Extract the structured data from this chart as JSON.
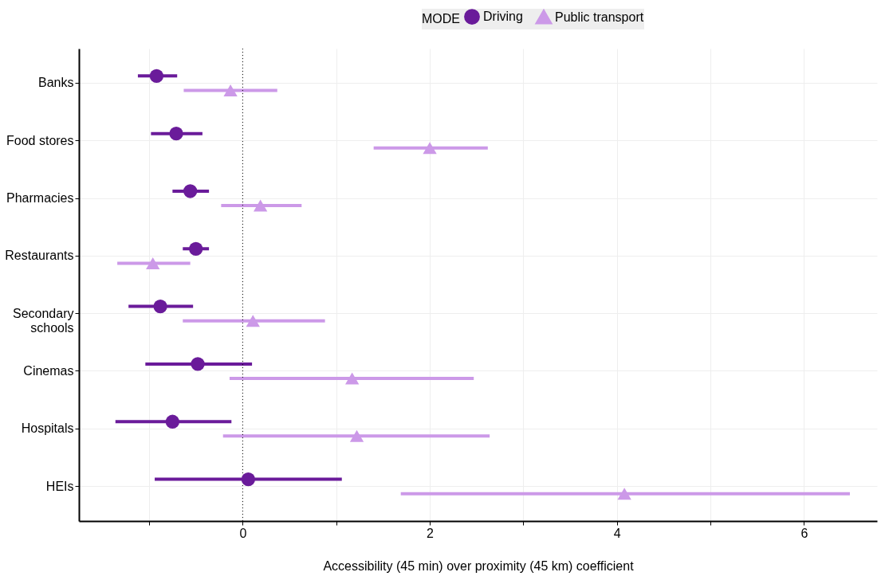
{
  "chart_data": {
    "type": "scatter",
    "xlabel": "Accessibility (45 min) over proximity (45 km) coefficient",
    "legend_title": "MODE",
    "categories": [
      "Banks",
      "Food stores",
      "Pharmacies",
      "Restaurants",
      "Secondary schools",
      "Cinemas",
      "Hospitals",
      "HEIs"
    ],
    "series": [
      {
        "name": "Driving",
        "color": "#6a1b9a",
        "marker": "circle",
        "values": [
          -0.92,
          -0.71,
          -0.56,
          -0.5,
          -0.88,
          -0.48,
          -0.75,
          0.06
        ],
        "errors": [
          [
            -1.12,
            -0.7
          ],
          [
            -0.98,
            -0.43
          ],
          [
            -0.75,
            -0.36
          ],
          [
            -0.64,
            -0.36
          ],
          [
            -1.22,
            -0.53
          ],
          [
            -1.04,
            0.1
          ],
          [
            -1.36,
            -0.12
          ],
          [
            -0.94,
            1.06
          ]
        ]
      },
      {
        "name": "Public transport",
        "color": "#cc99e8",
        "marker": "triangle",
        "values": [
          -0.13,
          2.0,
          0.19,
          -0.96,
          0.11,
          1.17,
          1.22,
          4.08
        ],
        "errors": [
          [
            -0.63,
            0.37
          ],
          [
            1.4,
            2.62
          ],
          [
            -0.23,
            0.63
          ],
          [
            -1.34,
            -0.56
          ],
          [
            -0.64,
            0.88
          ],
          [
            -0.14,
            2.47
          ],
          [
            -0.21,
            2.64
          ],
          [
            1.69,
            6.49
          ]
        ]
      }
    ],
    "xlim": [
      -1.75,
      6.78
    ],
    "xticks": [
      {
        "value": -1,
        "label": null
      },
      0,
      {
        "value": 1,
        "label": null
      },
      2,
      {
        "value": 3,
        "label": null
      },
      4,
      {
        "value": 5,
        "label": null
      },
      6
    ],
    "ref_lines": [
      {
        "axis": "x",
        "value": 0,
        "color": "#000000",
        "line_style": "dotted"
      }
    ],
    "grid": true,
    "legend": "top",
    "orientation": "horizontal"
  }
}
